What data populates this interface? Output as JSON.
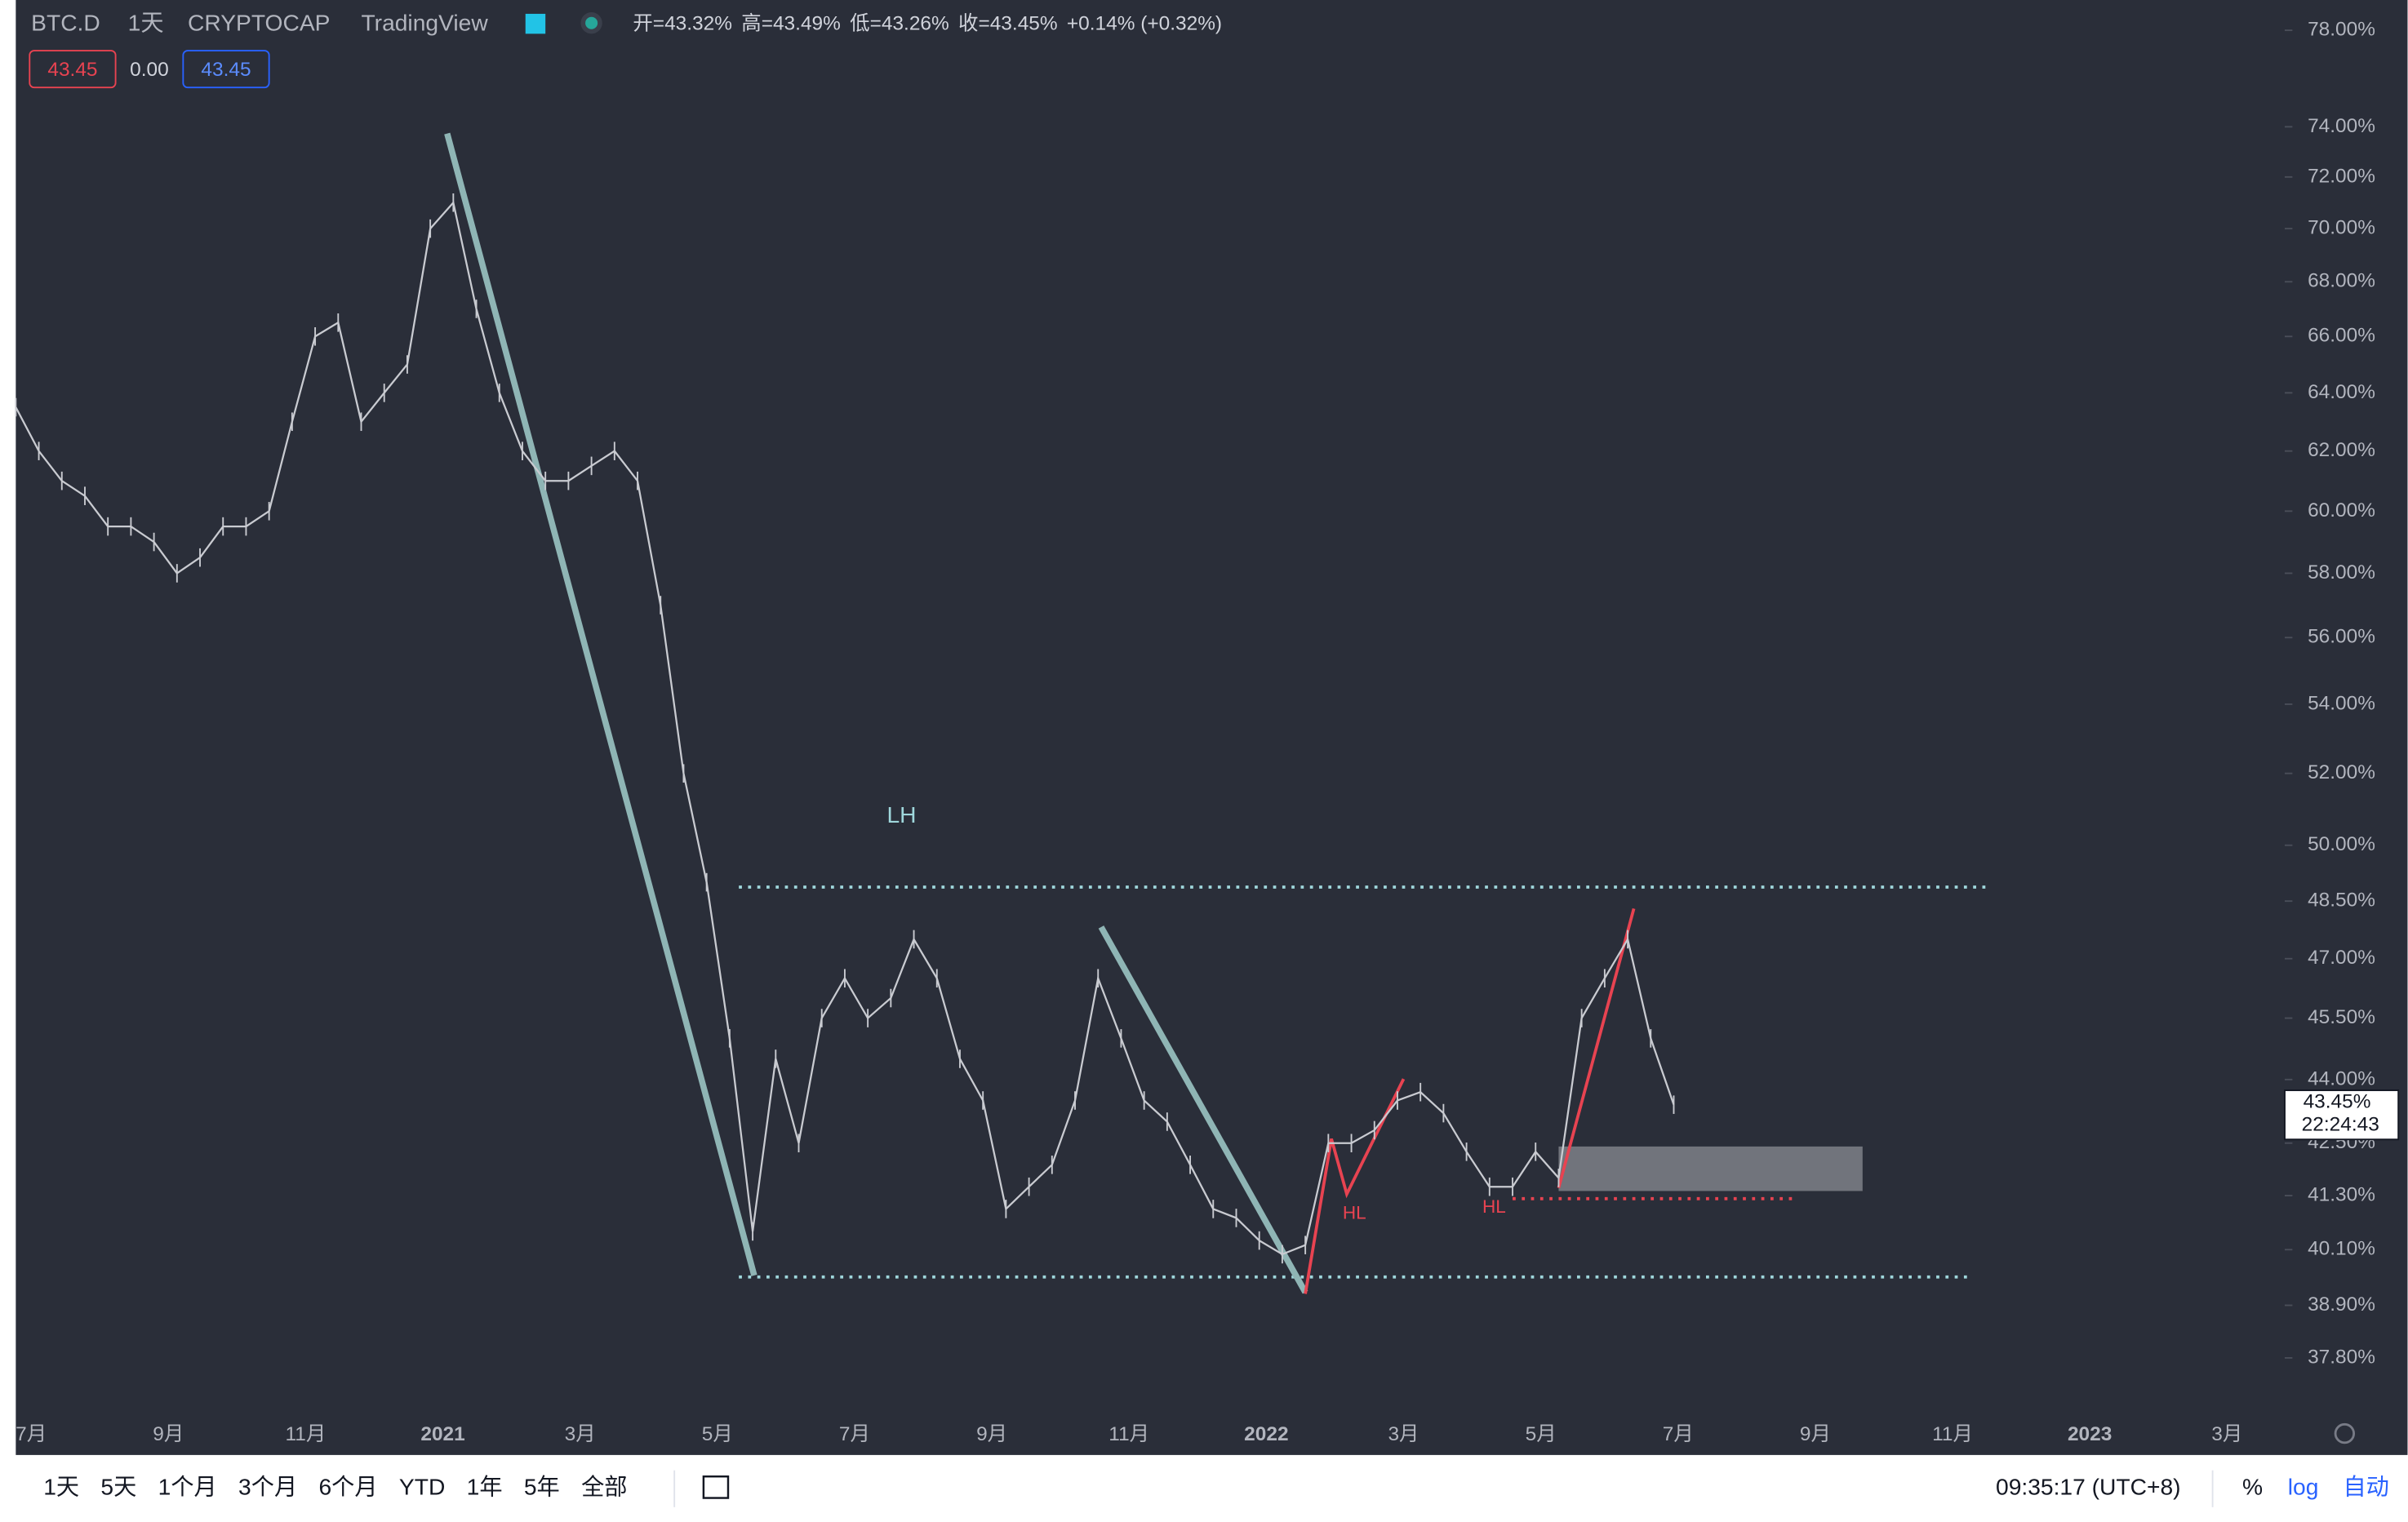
{
  "header": {
    "symbol": "BTC.D",
    "interval": "1天",
    "exchange": "CRYPTOCAP",
    "source": "TradingView",
    "ohlc": [
      "开=43.32%",
      "高=43.49%",
      "低=43.26%",
      "收=43.45%",
      "+0.14% (+0.32%)"
    ],
    "boxes": [
      "43.45",
      "0.00",
      "43.45"
    ]
  },
  "chart_data": {
    "type": "line",
    "log_scale": true,
    "ylim": [
      36.7,
      79.3
    ],
    "yticks": [
      {
        "value": 78,
        "label": "78.00%"
      },
      {
        "value": 74,
        "label": "74.00%"
      },
      {
        "value": 72,
        "label": "72.00%"
      },
      {
        "value": 70,
        "label": "70.00%"
      },
      {
        "value": 68,
        "label": "68.00%"
      },
      {
        "value": 66,
        "label": "66.00%"
      },
      {
        "value": 64,
        "label": "64.00%"
      },
      {
        "value": 62,
        "label": "62.00%"
      },
      {
        "value": 60,
        "label": "60.00%"
      },
      {
        "value": 58,
        "label": "58.00%"
      },
      {
        "value": 56,
        "label": "56.00%"
      },
      {
        "value": 54,
        "label": "54.00%"
      },
      {
        "value": 52,
        "label": "52.00%"
      },
      {
        "value": 50,
        "label": "50.00%"
      },
      {
        "value": 48.5,
        "label": "48.50%"
      },
      {
        "value": 47,
        "label": "47.00%"
      },
      {
        "value": 45.5,
        "label": "45.50%"
      },
      {
        "value": 44,
        "label": "44.00%"
      },
      {
        "value": 42.5,
        "label": "42.50%"
      },
      {
        "value": 41.3,
        "label": "41.30%"
      },
      {
        "value": 40.1,
        "label": "40.10%"
      },
      {
        "value": 38.9,
        "label": "38.90%"
      },
      {
        "value": 37.8,
        "label": "37.80%"
      }
    ],
    "x_labels": [
      "7月",
      "9月",
      "11月",
      "2021",
      "3月",
      "5月",
      "7月",
      "9月",
      "11月",
      "2022",
      "3月",
      "5月",
      "7月",
      "9月",
      "11月",
      "2023",
      "3月"
    ],
    "series": [
      {
        "color": "#c9cbd1",
        "values": [
          63.5,
          62,
          61,
          60.5,
          59.5,
          59.5,
          59,
          58,
          58.5,
          59.5,
          59.5,
          60,
          63,
          66,
          66.5,
          63,
          64,
          65,
          70,
          71,
          67,
          64,
          62,
          61,
          61,
          61.5,
          62,
          61,
          57,
          52,
          49,
          45,
          40.5,
          44.5,
          42.5,
          45.5,
          46.5,
          45.5,
          46,
          47.5,
          46.5,
          44.5,
          43.5,
          41,
          41.5,
          42,
          43.5,
          46.5,
          45,
          43.5,
          43,
          42,
          41,
          40.8,
          40.3,
          40,
          40.2,
          42.5,
          42.5,
          42.8,
          43.5,
          43.7,
          43.2,
          42.3,
          41.5,
          41.5,
          42.3,
          41.7,
          45.5,
          46.5,
          47.5,
          45,
          43.4
        ]
      }
    ],
    "price_tag": {
      "value": 43.45,
      "label": "43.45%"
    },
    "countdown": "22:24:43"
  },
  "annotations": [
    "LH",
    "HL",
    "HL"
  ],
  "toolbar": {
    "ranges": [
      "1天",
      "5天",
      "1个月",
      "3个月",
      "6个月",
      "YTD",
      "1年",
      "5年",
      "全部"
    ],
    "time": "09:35:17 (UTC+8)",
    "percent": "%",
    "log": "log",
    "auto": "自动"
  }
}
